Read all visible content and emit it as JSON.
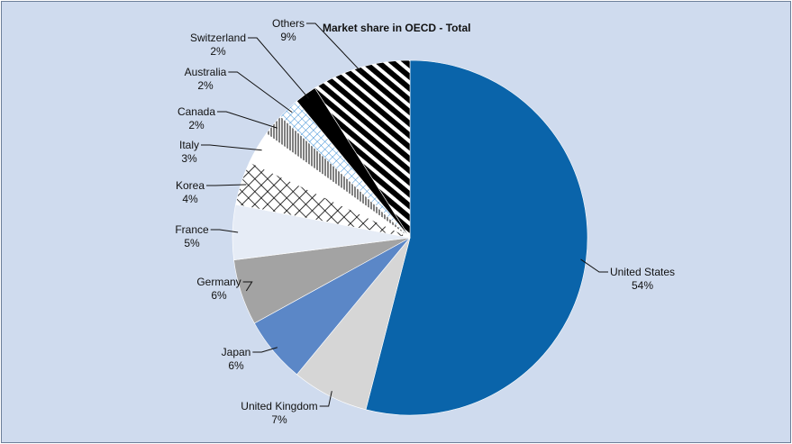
{
  "chart_data": {
    "type": "pie",
    "title": "Market share in OECD - Total",
    "categories": [
      "United States",
      "United Kingdom",
      "Japan",
      "Germany",
      "France",
      "Korea",
      "Italy",
      "Canada",
      "Australia",
      "Switzerland",
      "Others"
    ],
    "values": [
      54,
      7,
      6,
      6,
      5,
      4,
      3,
      2,
      2,
      2,
      9
    ],
    "value_labels": [
      "54%",
      "7%",
      "6%",
      "6%",
      "5%",
      "4%",
      "3%",
      "2%",
      "2%",
      "2%",
      "9%"
    ],
    "colors": [
      "#0a64aa",
      "#d6d6d6",
      "#5b87c7",
      "#a3a3a3",
      "#e6ecf6",
      "#ffffff",
      "#ffffff",
      "#ffffff",
      "#ffffff",
      "#000000",
      "#000000"
    ],
    "patterns": [
      null,
      null,
      null,
      null,
      null,
      "crosshatch",
      null,
      "vertical-stripes",
      "blue-crosshatch",
      null,
      "diagonal-stripes"
    ]
  }
}
